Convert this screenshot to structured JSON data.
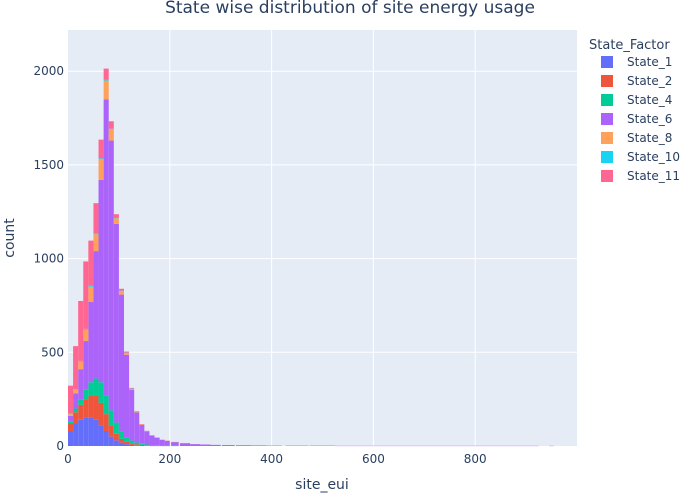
{
  "chart_data": {
    "type": "bar",
    "subtype": "stacked-histogram",
    "title": "State wise distribution of site energy usage",
    "xlabel": "site_eui",
    "ylabel": "count",
    "xlim": [
      0,
      1000
    ],
    "ylim": [
      0,
      2220
    ],
    "x_ticks": [
      0,
      200,
      400,
      600,
      800
    ],
    "y_ticks": [
      0,
      500,
      1000,
      1500,
      2000
    ],
    "legend_title": "State_Factor",
    "legend_position": "right",
    "grid": true,
    "bin_width": 10,
    "x": [
      5,
      15,
      25,
      35,
      45,
      55,
      65,
      75,
      85,
      95,
      105,
      115,
      125,
      135,
      145,
      155,
      165,
      175,
      185,
      195,
      210,
      230,
      250,
      270,
      290,
      315,
      345,
      375,
      405,
      450,
      500,
      550,
      600,
      650,
      700,
      750,
      800,
      850,
      900,
      950
    ],
    "series": [
      {
        "name": "State_1",
        "color": "#636efa",
        "values": [
          80,
          120,
          140,
          150,
          150,
          140,
          110,
          80,
          50,
          30,
          18,
          10,
          6,
          4,
          3,
          2,
          1,
          1,
          1,
          1,
          0,
          0,
          0,
          0,
          0,
          0,
          0,
          0,
          0,
          0,
          0,
          0,
          0,
          0,
          0,
          0,
          0,
          0,
          0,
          0
        ]
      },
      {
        "name": "State_2",
        "color": "#ef553b",
        "values": [
          40,
          60,
          80,
          100,
          120,
          130,
          120,
          90,
          60,
          35,
          20,
          12,
          8,
          5,
          3,
          2,
          1,
          1,
          1,
          1,
          0,
          0,
          0,
          0,
          0,
          0,
          0,
          0,
          0,
          0,
          0,
          0,
          0,
          0,
          0,
          0,
          0,
          0,
          0,
          0
        ]
      },
      {
        "name": "State_4",
        "color": "#00cc96",
        "values": [
          10,
          20,
          30,
          50,
          70,
          90,
          110,
          100,
          80,
          60,
          40,
          25,
          15,
          10,
          6,
          4,
          3,
          2,
          1,
          1,
          1,
          0,
          0,
          0,
          0,
          0,
          0,
          0,
          0,
          0,
          0,
          0,
          0,
          0,
          0,
          0,
          0,
          0,
          0,
          0
        ]
      },
      {
        "name": "State_6",
        "color": "#ab63fa",
        "values": [
          30,
          80,
          160,
          260,
          430,
          680,
          1080,
          1580,
          1440,
          1060,
          730,
          440,
          270,
          160,
          100,
          70,
          50,
          40,
          30,
          25,
          20,
          15,
          10,
          8,
          6,
          5,
          4,
          3,
          2,
          2,
          2,
          1,
          1,
          1,
          1,
          1,
          1,
          1,
          1,
          1
        ]
      },
      {
        "name": "State_8",
        "color": "#ffa15a",
        "values": [
          10,
          20,
          40,
          60,
          80,
          90,
          110,
          100,
          60,
          30,
          20,
          10,
          6,
          4,
          3,
          2,
          2,
          1,
          1,
          1,
          1,
          0,
          0,
          0,
          0,
          0,
          0,
          0,
          0,
          0,
          0,
          0,
          0,
          0,
          0,
          0,
          0,
          0,
          0,
          0
        ]
      },
      {
        "name": "State_10",
        "color": "#19d3f3",
        "values": [
          2,
          3,
          4,
          5,
          6,
          6,
          5,
          4,
          3,
          2,
          1,
          1,
          1,
          0,
          0,
          0,
          0,
          0,
          0,
          0,
          0,
          0,
          0,
          0,
          0,
          0,
          0,
          0,
          0,
          0,
          0,
          0,
          0,
          0,
          0,
          0,
          0,
          0,
          0,
          0
        ]
      },
      {
        "name": "State_11",
        "color": "#ff6692",
        "values": [
          150,
          230,
          320,
          360,
          240,
          160,
          100,
          60,
          40,
          20,
          10,
          6,
          4,
          3,
          2,
          1,
          1,
          1,
          0,
          0,
          0,
          0,
          0,
          0,
          0,
          0,
          0,
          0,
          0,
          0,
          0,
          0,
          0,
          0,
          0,
          0,
          0,
          0,
          0,
          0
        ]
      }
    ]
  }
}
